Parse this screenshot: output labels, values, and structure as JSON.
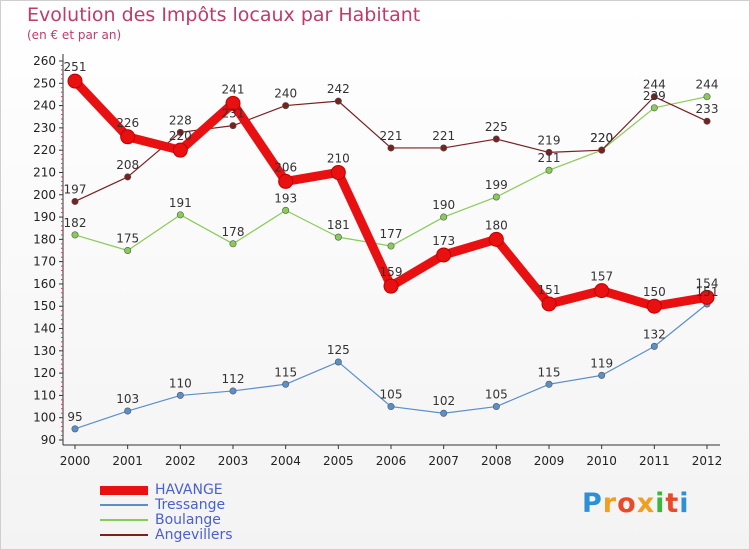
{
  "title": "Evolution des Impôts locaux par Habitant",
  "subtitle": "(en € et par an)",
  "logo": {
    "letters": [
      "P",
      "r",
      "o",
      "x",
      "i",
      "t",
      "i"
    ],
    "colors": [
      "#2d8fd6",
      "#f0a020",
      "#e84a2a",
      "#f0a020",
      "#3db43d",
      "#e84a2a",
      "#2d8fd6"
    ]
  },
  "chart_data": {
    "type": "line",
    "x": [
      2000,
      2001,
      2002,
      2003,
      2004,
      2005,
      2006,
      2007,
      2008,
      2009,
      2010,
      2011,
      2012
    ],
    "ylim": [
      90,
      260
    ],
    "yticks": [
      90,
      100,
      110,
      120,
      130,
      140,
      150,
      160,
      170,
      180,
      190,
      200,
      210,
      220,
      230,
      240,
      250,
      260
    ],
    "grid": false,
    "legend_position": "bottom-left",
    "series": [
      {
        "name": "HAVANGE",
        "color": "#e81010",
        "values": [
          251,
          226,
          220,
          241,
          206,
          210,
          159,
          173,
          180,
          151,
          157,
          150,
          154
        ]
      },
      {
        "name": "Tressange",
        "color": "#5b8fc9",
        "values": [
          95,
          103,
          110,
          112,
          115,
          125,
          105,
          102,
          105,
          115,
          119,
          132,
          151
        ]
      },
      {
        "name": "Boulange",
        "color": "#88cc55",
        "values": [
          182,
          175,
          191,
          178,
          193,
          181,
          177,
          190,
          199,
          211,
          220,
          239,
          244
        ]
      },
      {
        "name": "Angevillers",
        "color": "#7a2020",
        "values": [
          197,
          208,
          228,
          231,
          240,
          242,
          221,
          221,
          225,
          219,
          220,
          244,
          233
        ]
      }
    ]
  }
}
